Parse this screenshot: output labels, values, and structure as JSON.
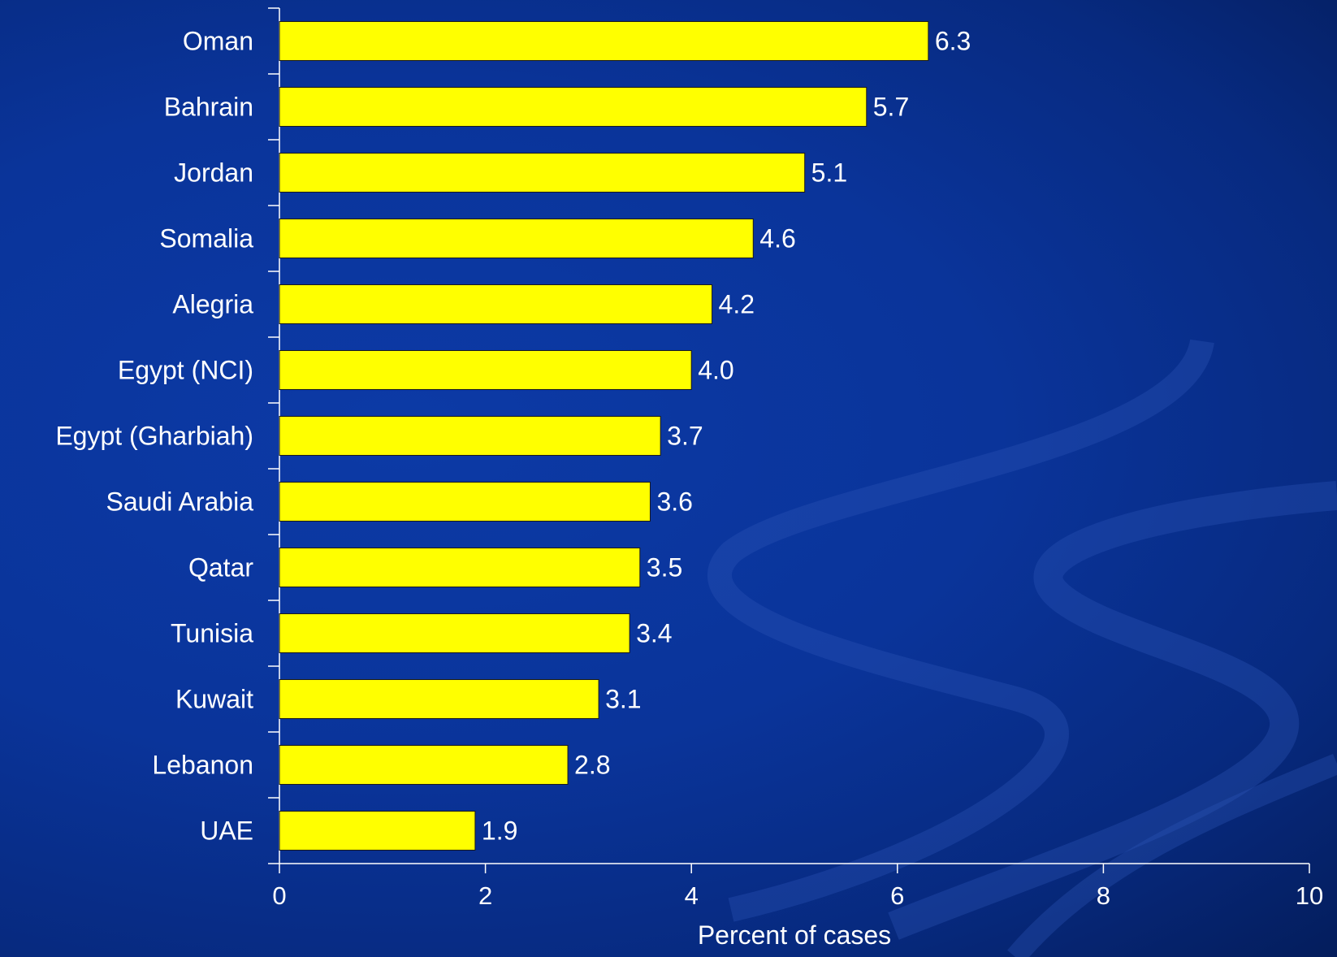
{
  "chart_data": {
    "type": "bar",
    "orientation": "horizontal",
    "categories": [
      "Oman",
      "Bahrain",
      "Jordan",
      "Somalia",
      "Alegria",
      "Egypt (NCI)",
      "Egypt (Gharbiah)",
      "Saudi Arabia",
      "Qatar",
      "Tunisia",
      "Kuwait",
      "Lebanon",
      "UAE"
    ],
    "values": [
      6.3,
      5.7,
      5.1,
      4.6,
      4.2,
      4.0,
      3.7,
      3.6,
      3.5,
      3.4,
      3.1,
      2.8,
      1.9
    ],
    "value_labels": [
      "6.3",
      "5.7",
      "5.1",
      "4.6",
      "4.2",
      "4.0",
      "3.7",
      "3.6",
      "3.5",
      "3.4",
      "3.1",
      "2.8",
      "1.9"
    ],
    "xlabel": "Percent of cases",
    "ylabel": "",
    "xlim": [
      0,
      10
    ],
    "xticks": [
      0,
      2,
      4,
      6,
      8,
      10
    ],
    "grid": false,
    "legend": "none",
    "colors": {
      "bar": "#ffff00",
      "bar_outline": "#1a1a1a",
      "text": "#ffffff",
      "axis": "#ffffff",
      "background": "#0a349a"
    }
  }
}
